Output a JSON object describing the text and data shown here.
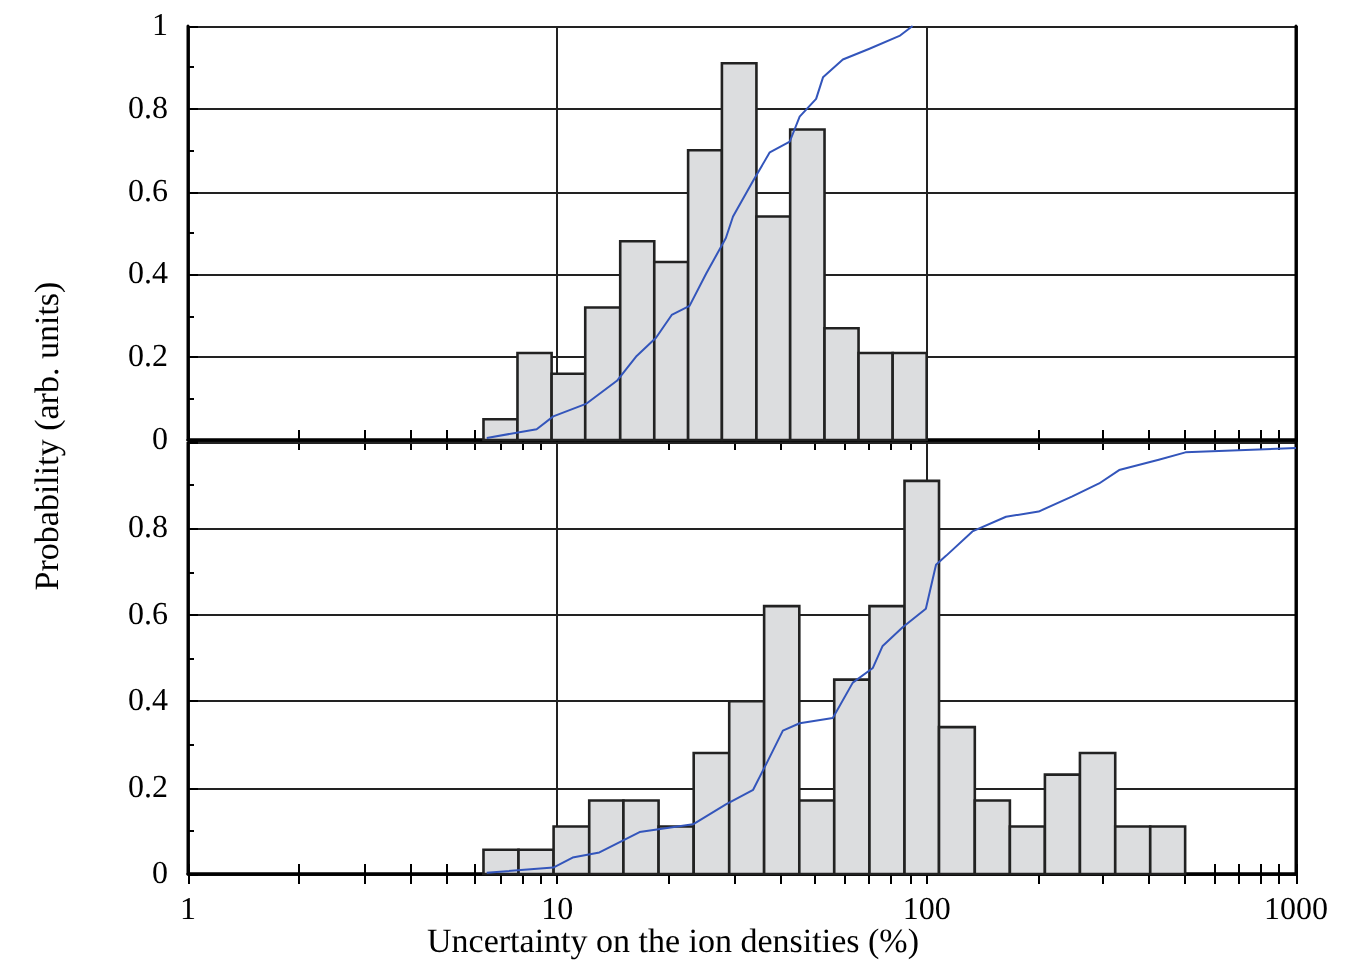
{
  "chart_data": [
    {
      "type": "histogram",
      "ylabel": "Probability (arb. units)",
      "log": "x",
      "grid": true,
      "tick_labels": "y",
      "xlim": [
        1,
        1000
      ],
      "xticks": [
        1,
        {
          "value": 2,
          "label": null
        },
        {
          "value": 3,
          "label": null
        },
        {
          "value": 4,
          "label": null
        },
        {
          "value": 5,
          "label": null
        },
        {
          "value": 6,
          "label": null
        },
        {
          "value": 7,
          "label": null
        },
        {
          "value": 8,
          "label": null
        },
        {
          "value": 9,
          "label": null
        },
        10,
        {
          "value": 20,
          "label": null
        },
        {
          "value": 30,
          "label": null
        },
        {
          "value": 40,
          "label": null
        },
        {
          "value": 50,
          "label": null
        },
        {
          "value": 60,
          "label": null
        },
        {
          "value": 70,
          "label": null
        },
        {
          "value": 80,
          "label": null
        },
        {
          "value": 90,
          "label": null
        },
        100,
        {
          "value": 200,
          "label": null
        },
        {
          "value": 300,
          "label": null
        },
        {
          "value": 400,
          "label": null
        },
        {
          "value": 500,
          "label": null
        },
        {
          "value": 600,
          "label": null
        },
        {
          "value": 700,
          "label": null
        },
        {
          "value": 800,
          "label": null
        },
        {
          "value": 900,
          "label": null
        },
        1000
      ],
      "ylim": [
        0,
        1
      ],
      "yticks": [
        0,
        0.2,
        0.4,
        0.6,
        0.8,
        1
      ],
      "series": [
        {
          "color": "#dcdddf",
          "bins": [
            6.31,
            7.8,
            9.65,
            11.9,
            14.8,
            18.3,
            22.6,
            27.9,
            34.6,
            42.7,
            52.9,
            65.4,
            80.9,
            100
          ],
          "values": [
            0.05,
            0.21,
            0.16,
            0.32,
            0.48,
            0.43,
            0.7,
            0.91,
            0.54,
            0.75,
            0.27,
            0.21,
            0.21
          ]
        },
        {
          "type": "line",
          "color": "#3355bb",
          "x": [
            6.44,
            8.79,
            9.75,
            12.0,
            14.5,
            16.4,
            18.5,
            20.4,
            22.8,
            25.3,
            28.6,
            29.9,
            33.9,
            37.6,
            42.6,
            45.3,
            50.2,
            52.4,
            59.3,
            70.0,
            84.4,
            91.6
          ],
          "values": [
            0.005,
            0.026,
            0.057,
            0.088,
            0.143,
            0.203,
            0.247,
            0.302,
            0.324,
            0.402,
            0.488,
            0.54,
            0.626,
            0.695,
            0.721,
            0.781,
            0.824,
            0.876,
            0.919,
            0.945,
            0.976,
            1.0
          ]
        }
      ]
    },
    {
      "type": "histogram",
      "xlabel": "Uncertainty on the ion densities (%)",
      "log": "x",
      "grid": true,
      "xlim": [
        1,
        1000
      ],
      "xticks": [
        1,
        {
          "value": 2,
          "label": null
        },
        {
          "value": 3,
          "label": null
        },
        {
          "value": 4,
          "label": null
        },
        {
          "value": 5,
          "label": null
        },
        {
          "value": 6,
          "label": null
        },
        {
          "value": 7,
          "label": null
        },
        {
          "value": 8,
          "label": null
        },
        {
          "value": 9,
          "label": null
        },
        10,
        {
          "value": 20,
          "label": null
        },
        {
          "value": 30,
          "label": null
        },
        {
          "value": 40,
          "label": null
        },
        {
          "value": 50,
          "label": null
        },
        {
          "value": 60,
          "label": null
        },
        {
          "value": 70,
          "label": null
        },
        {
          "value": 80,
          "label": null
        },
        {
          "value": 90,
          "label": null
        },
        100,
        {
          "value": 200,
          "label": null
        },
        {
          "value": 300,
          "label": null
        },
        {
          "value": 400,
          "label": null
        },
        {
          "value": 500,
          "label": null
        },
        {
          "value": 600,
          "label": null
        },
        {
          "value": 700,
          "label": null
        },
        {
          "value": 800,
          "label": null
        },
        {
          "value": 900,
          "label": null
        },
        1000
      ],
      "ylim": [
        0,
        1
      ],
      "yticks": [
        0,
        0.2,
        0.4,
        0.6,
        0.8,
        {
          "value": 1,
          "label": null
        }
      ],
      "series": [
        {
          "color": "#dcdddf",
          "bins": [
            6.31,
            7.85,
            9.77,
            12.2,
            15.1,
            18.8,
            23.4,
            29.2,
            36.3,
            45.2,
            56.2,
            70.0,
            87.1,
            108,
            135,
            168,
            209,
            260,
            324,
            403,
            501
          ],
          "values": [
            0.056,
            0.056,
            0.11,
            0.17,
            0.17,
            0.11,
            0.28,
            0.4,
            0.62,
            0.17,
            0.45,
            0.62,
            0.91,
            0.34,
            0.17,
            0.11,
            0.23,
            0.28,
            0.11,
            0.11
          ]
        },
        {
          "type": "line",
          "color": "#3355bb",
          "x": [
            6.44,
            9.75,
            11.0,
            13.0,
            16.7,
            23.3,
            28.6,
            33.9,
            36.8,
            40.8,
            45.3,
            55.7,
            63.1,
            71.5,
            76.0,
            86.1,
            99.5,
            106,
            113,
            133,
            164,
            201,
            248,
            293,
            332,
            425,
            502,
            1000
          ],
          "values": [
            0.003,
            0.015,
            0.038,
            0.05,
            0.097,
            0.115,
            0.161,
            0.195,
            0.255,
            0.332,
            0.349,
            0.361,
            0.443,
            0.477,
            0.528,
            0.571,
            0.614,
            0.716,
            0.737,
            0.793,
            0.827,
            0.839,
            0.874,
            0.904,
            0.935,
            0.959,
            0.976,
            0.986
          ]
        }
      ]
    }
  ]
}
